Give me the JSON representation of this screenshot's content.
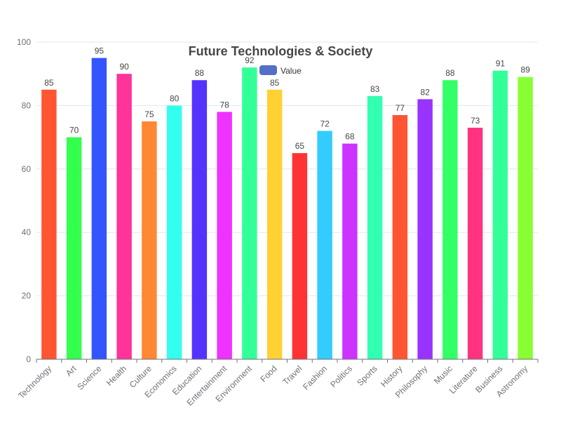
{
  "chart_data": {
    "type": "bar",
    "title": "Future Technologies & Society",
    "xlabel": "",
    "ylabel": "",
    "ylim": [
      0,
      100
    ],
    "yticks": [
      0,
      20,
      40,
      60,
      80,
      100
    ],
    "grid": true,
    "legend_position": "top-center",
    "categories": [
      "Technology",
      "Art",
      "Science",
      "Health",
      "Culture",
      "Economics",
      "Education",
      "Entertainment",
      "Environment",
      "Food",
      "Travel",
      "Fashion",
      "Politics",
      "Sports",
      "History",
      "Philosophy",
      "Music",
      "Literature",
      "Business",
      "Astronomy"
    ],
    "series": [
      {
        "name": "Value",
        "legend_color": "#5470c6",
        "values": [
          85,
          70,
          95,
          90,
          75,
          80,
          88,
          78,
          92,
          85,
          65,
          72,
          68,
          83,
          77,
          82,
          88,
          73,
          91,
          89
        ],
        "colors": [
          "#ff5533",
          "#33ff4d",
          "#3355ff",
          "#ff3399",
          "#ff8833",
          "#33ffee",
          "#5533ff",
          "#ee33ff",
          "#33ff99",
          "#ffd133",
          "#ff3333",
          "#33ccff",
          "#cc33ff",
          "#33ffb3",
          "#ff5533",
          "#9933ff",
          "#33ff66",
          "#ff3380",
          "#33ff99",
          "#88ff33"
        ]
      }
    ]
  }
}
